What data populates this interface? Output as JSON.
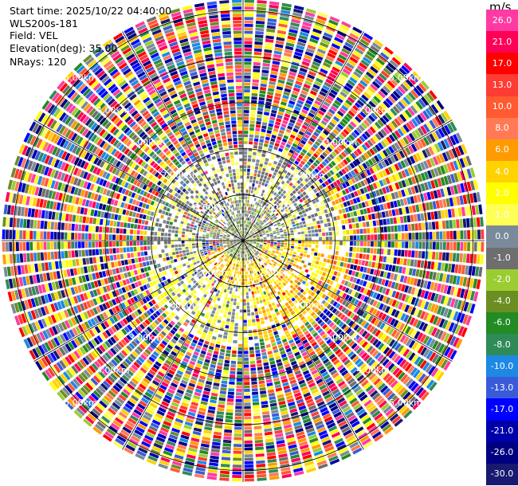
{
  "header": {
    "start_time": "Start time: 2025/10/22 04:40:00",
    "instrument": "WLS200s-181",
    "field": "Field: VEL",
    "elevation": "Elevation(deg): 35.00",
    "nrays": "NRays: 120"
  },
  "chart_data": {
    "type": "heatmap",
    "projection": "polar-ppi",
    "field": "VEL",
    "elevation_deg": 35.0,
    "n_rays": 120,
    "range_rings_km": [
      1.0,
      2.0,
      3.0,
      4.0,
      5.0
    ],
    "range_ring_labels": [
      "1.00km",
      "2.00km",
      "3.00km",
      "4.00km",
      "5.00km"
    ],
    "max_range_km": 5.25,
    "azimuth_lines_deg": [
      0,
      30,
      60,
      90,
      120,
      150,
      180,
      210,
      240,
      270,
      300,
      330
    ],
    "colorbar": {
      "unit": "m/s",
      "ticks": [
        "26.0",
        "21.0",
        "17.0",
        "13.0",
        "10.0",
        "8.0",
        "6.0",
        "4.0",
        "2.0",
        "1.0",
        "0.0",
        "-1.0",
        "-2.0",
        "-4.0",
        "-6.0",
        "-8.0",
        "-10.0",
        "-13.0",
        "-17.0",
        "-21.0",
        "-26.0",
        "-30.0"
      ],
      "bins": [
        {
          "color": "#ff3aa3"
        },
        {
          "color": "#ff0057"
        },
        {
          "color": "#ff0000"
        },
        {
          "color": "#ff3c33"
        },
        {
          "color": "#ff5a30"
        },
        {
          "color": "#ff7a55"
        },
        {
          "color": "#ff9a00"
        },
        {
          "color": "#ffd200"
        },
        {
          "color": "#ffff00"
        },
        {
          "color": "#ffff55"
        },
        {
          "color": "#7a8a9a"
        },
        {
          "color": "#6e6e6e"
        },
        {
          "color": "#9acd32"
        },
        {
          "color": "#6b8e23"
        },
        {
          "color": "#228b22"
        },
        {
          "color": "#2e8b57"
        },
        {
          "color": "#1e88e5"
        },
        {
          "color": "#3a5bd9"
        },
        {
          "color": "#0000ff"
        },
        {
          "color": "#0000aa"
        },
        {
          "color": "#000080"
        },
        {
          "color": "#191970"
        }
      ]
    },
    "regions": [
      {
        "range_km": [
          0.0,
          0.45
        ],
        "azimuth_deg": [
          0,
          360
        ],
        "values": [
          -6.0,
          -4.0,
          -2.0
        ]
      },
      {
        "range_km": [
          0.45,
          0.95
        ],
        "azimuth_deg": [
          270,
          450
        ],
        "values": [
          -2.0,
          -1.0,
          -4.0
        ]
      },
      {
        "range_km": [
          0.0,
          1.0
        ],
        "azimuth_deg": [
          100,
          250
        ],
        "values": [
          2.0,
          1.0,
          4.0
        ]
      },
      {
        "range_km": [
          0.9,
          2.1
        ],
        "azimuth_deg": [
          250,
          450
        ],
        "values": [
          -2.0,
          -1.0,
          0.0
        ]
      },
      {
        "range_km": [
          0.9,
          2.3
        ],
        "azimuth_deg": [
          60,
          170
        ],
        "values": [
          2.0,
          1.0,
          4.0
        ]
      },
      {
        "range_km": [
          1.0,
          2.3
        ],
        "azimuth_deg": [
          170,
          250
        ],
        "values": [
          0.0,
          -1.0,
          1.0
        ]
      },
      {
        "range_km": [
          2.2,
          5.25
        ],
        "azimuth_deg": [
          0,
          360
        ],
        "values": "noise"
      }
    ]
  }
}
